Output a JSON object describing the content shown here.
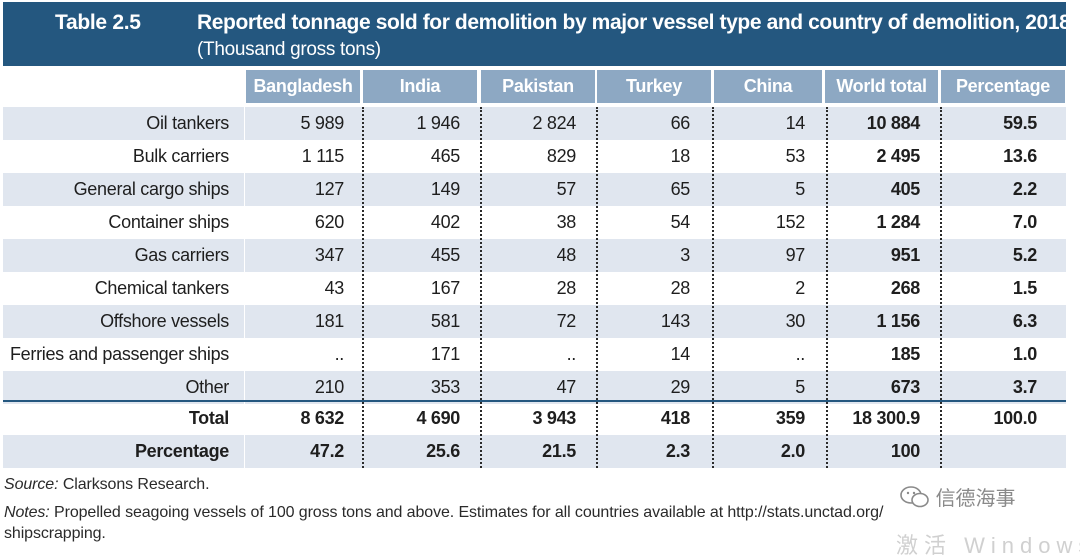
{
  "header": {
    "label": "Table 2.5",
    "title": "Reported tonnage sold for demolition by major vessel type and country of demolition, 2018",
    "subtitle": "(Thousand gross tons)"
  },
  "columns": [
    "Bangladesh",
    "India",
    "Pakistan",
    "Turkey",
    "China",
    "World total",
    "Percentage"
  ],
  "rows": [
    {
      "label": "Oil tankers",
      "values": [
        "5 989",
        "1 946",
        "2 824",
        "66",
        "14",
        "10 884",
        "59.5"
      ]
    },
    {
      "label": "Bulk carriers",
      "values": [
        "1 115",
        "465",
        "829",
        "18",
        "53",
        "2 495",
        "13.6"
      ]
    },
    {
      "label": "General cargo ships",
      "values": [
        "127",
        "149",
        "57",
        "65",
        "5",
        "405",
        "2.2"
      ]
    },
    {
      "label": "Container ships",
      "values": [
        "620",
        "402",
        "38",
        "54",
        "152",
        "1 284",
        "7.0"
      ]
    },
    {
      "label": "Gas carriers",
      "values": [
        "347",
        "455",
        "48",
        "3",
        "97",
        "951",
        "5.2"
      ]
    },
    {
      "label": "Chemical tankers",
      "values": [
        "43",
        "167",
        "28",
        "28",
        "2",
        "268",
        "1.5"
      ]
    },
    {
      "label": "Offshore vessels",
      "values": [
        "181",
        "581",
        "72",
        "143",
        "30",
        "1 156",
        "6.3"
      ]
    },
    {
      "label": "Ferries and passenger ships",
      "values": [
        "..",
        "171",
        "..",
        "14",
        "..",
        "185",
        "1.0"
      ]
    },
    {
      "label": "Other",
      "values": [
        "210",
        "353",
        "47",
        "29",
        "5",
        "673",
        "3.7"
      ]
    }
  ],
  "totals": [
    {
      "label": "Total",
      "values": [
        "8 632",
        "4 690",
        "3 943",
        "418",
        "359",
        "18 300.9",
        "100.0"
      ]
    },
    {
      "label": "Percentage",
      "values": [
        "47.2",
        "25.6",
        "21.5",
        "2.3",
        "2.0",
        "100",
        ""
      ]
    }
  ],
  "footer": {
    "source_label": "Source:",
    "source_text": "Clarksons Research.",
    "notes_label": "Notes:",
    "notes_line1": "Propelled seagoing vessels of 100 gross tons and above. Estimates for all countries available at http://stats.unctad.org/",
    "notes_line2": "shipscrapping."
  },
  "watermark": {
    "text": "信德海事",
    "icon": "wechat-icon",
    "overlay": "激活 Windows"
  },
  "colors": {
    "header_bg": "#24577f",
    "column_header_bg": "#8da8c3",
    "row_shade": "#e0e6ef"
  }
}
